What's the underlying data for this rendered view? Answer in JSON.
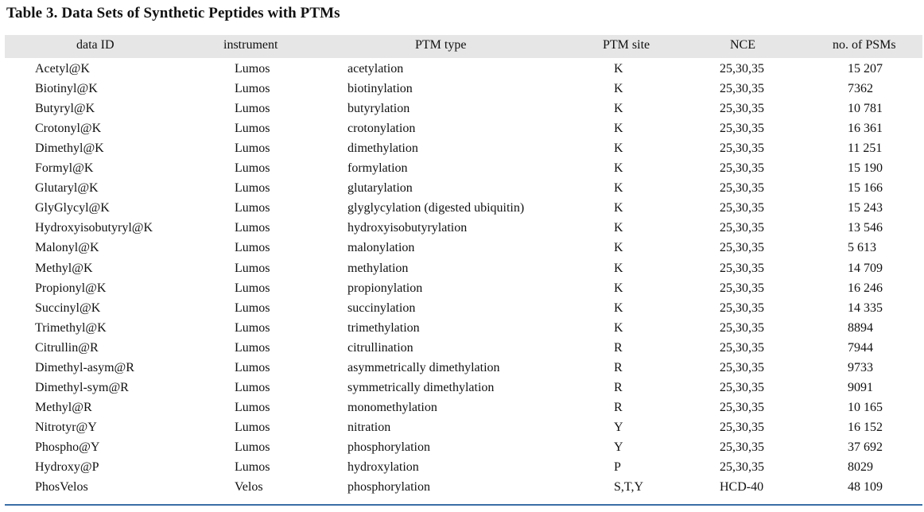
{
  "table": {
    "caption": "Table 3. Data Sets of Synthetic Peptides with PTMs",
    "columns": [
      "data ID",
      "instrument",
      "PTM type",
      "PTM site",
      "NCE",
      "no. of PSMs"
    ],
    "rows": [
      [
        "Acetyl@K",
        "Lumos",
        "acetylation",
        "K",
        "25,30,35",
        "15 207"
      ],
      [
        "Biotinyl@K",
        "Lumos",
        "biotinylation",
        "K",
        "25,30,35",
        "7362"
      ],
      [
        "Butyryl@K",
        "Lumos",
        "butyrylation",
        "K",
        "25,30,35",
        "10 781"
      ],
      [
        "Crotonyl@K",
        "Lumos",
        "crotonylation",
        "K",
        "25,30,35",
        "16 361"
      ],
      [
        "Dimethyl@K",
        "Lumos",
        "dimethylation",
        "K",
        "25,30,35",
        "11 251"
      ],
      [
        "Formyl@K",
        "Lumos",
        "formylation",
        "K",
        "25,30,35",
        "15 190"
      ],
      [
        "Glutaryl@K",
        "Lumos",
        "glutarylation",
        "K",
        "25,30,35",
        "15 166"
      ],
      [
        "GlyGlycyl@K",
        "Lumos",
        "glyglycylation (digested ubiquitin)",
        "K",
        "25,30,35",
        "15 243"
      ],
      [
        "Hydroxyisobutyryl@K",
        "Lumos",
        "hydroxyisobutyrylation",
        "K",
        "25,30,35",
        "13 546"
      ],
      [
        "Malonyl@K",
        "Lumos",
        "malonylation",
        "K",
        "25,30,35",
        "5 613"
      ],
      [
        "Methyl@K",
        "Lumos",
        "methylation",
        "K",
        "25,30,35",
        "14 709"
      ],
      [
        "Propionyl@K",
        "Lumos",
        "propionylation",
        "K",
        "25,30,35",
        "16 246"
      ],
      [
        "Succinyl@K",
        "Lumos",
        "succinylation",
        "K",
        "25,30,35",
        "14 335"
      ],
      [
        "Trimethyl@K",
        "Lumos",
        "trimethylation",
        "K",
        "25,30,35",
        "8894"
      ],
      [
        "Citrullin@R",
        "Lumos",
        "citrullination",
        "R",
        "25,30,35",
        "7944"
      ],
      [
        "Dimethyl-asym@R",
        "Lumos",
        "asymmetrically dimethylation",
        "R",
        "25,30,35",
        "9733"
      ],
      [
        "Dimethyl-sym@R",
        "Lumos",
        "symmetrically dimethylation",
        "R",
        "25,30,35",
        "9091"
      ],
      [
        "Methyl@R",
        "Lumos",
        "monomethylation",
        "R",
        "25,30,35",
        "10 165"
      ],
      [
        "Nitrotyr@Y",
        "Lumos",
        "nitration",
        "Y",
        "25,30,35",
        "16 152"
      ],
      [
        "Phospho@Y",
        "Lumos",
        "phosphorylation",
        "Y",
        "25,30,35",
        "37 692"
      ],
      [
        "Hydroxy@P",
        "Lumos",
        "hydroxylation",
        "P",
        "25,30,35",
        "8029"
      ],
      [
        "PhosVelos",
        "Velos",
        "phosphorylation",
        "S,T,Y",
        "HCD-40",
        "48 109"
      ]
    ]
  }
}
